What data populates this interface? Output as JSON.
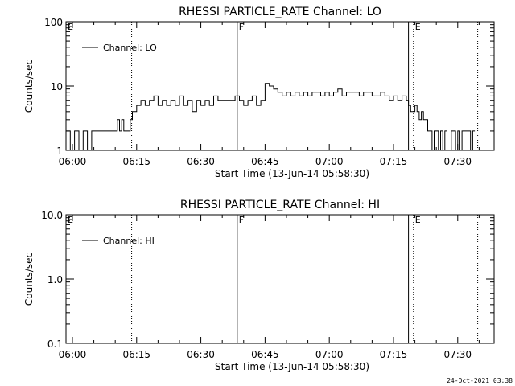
{
  "timestamp": "24-Oct-2021 03:38",
  "chart_data": [
    {
      "type": "line",
      "title": "RHESSI PARTICLE_RATE Channel: LO",
      "xlabel": "Start Time (13-Jun-14 05:58:30)",
      "ylabel": "Counts/sec",
      "yscale": "log",
      "ylim": [
        1,
        100
      ],
      "xlim": [
        "05:58:30",
        "07:38:30"
      ],
      "x_ticks": [
        "06:00",
        "06:15",
        "06:30",
        "06:45",
        "07:00",
        "07:15",
        "07:30"
      ],
      "y_ticks": [
        "1",
        "10",
        "100"
      ],
      "legend": {
        "position": "top-left",
        "entries": [
          "Channel: LO"
        ]
      },
      "markers": [
        {
          "label": "E",
          "time": "05:58:30",
          "style": "solid"
        },
        {
          "label": "",
          "time": "06:13:50",
          "style": "dotted"
        },
        {
          "label": "F",
          "time": "06:38:30",
          "style": "solid"
        },
        {
          "label": "",
          "time": "07:18:30",
          "style": "solid"
        },
        {
          "label": "E",
          "time": "07:19:40",
          "style": "dotted"
        },
        {
          "label": "",
          "time": "07:34:40",
          "style": "dotted"
        }
      ],
      "series": [
        {
          "name": "Channel: LO",
          "x": [
            "05:58:30",
            "05:59:30",
            "06:00:30",
            "06:01:30",
            "06:02:30",
            "06:03:30",
            "06:04:30",
            "06:06:00",
            "06:08:00",
            "06:10:00",
            "06:10:30",
            "06:11:00",
            "06:11:30",
            "06:12:00",
            "06:12:30",
            "06:13:00",
            "06:13:30",
            "06:14:00",
            "06:15:00",
            "06:16:00",
            "06:17:00",
            "06:18:00",
            "06:19:00",
            "06:20:00",
            "06:21:00",
            "06:22:00",
            "06:23:00",
            "06:24:00",
            "06:25:00",
            "06:26:00",
            "06:27:00",
            "06:28:00",
            "06:29:00",
            "06:30:00",
            "06:31:00",
            "06:32:00",
            "06:33:00",
            "06:34:00",
            "06:35:00",
            "06:36:00",
            "06:37:00",
            "06:38:00",
            "06:39:00",
            "06:40:00",
            "06:41:00",
            "06:42:00",
            "06:43:00",
            "06:44:00",
            "06:45:00",
            "06:46:00",
            "06:47:00",
            "06:48:00",
            "06:49:00",
            "06:50:00",
            "06:51:00",
            "06:52:00",
            "06:53:00",
            "06:54:00",
            "06:55:00",
            "06:56:00",
            "06:57:00",
            "06:58:00",
            "06:59:00",
            "07:00:00",
            "07:01:00",
            "07:02:00",
            "07:03:00",
            "07:04:00",
            "07:05:00",
            "07:06:00",
            "07:07:00",
            "07:08:00",
            "07:09:00",
            "07:10:00",
            "07:11:00",
            "07:12:00",
            "07:13:00",
            "07:14:00",
            "07:15:00",
            "07:16:00",
            "07:17:00",
            "07:18:00",
            "07:18:30",
            "07:19:00",
            "07:20:00",
            "07:20:30",
            "07:21:00",
            "07:21:30",
            "07:22:00",
            "07:22:30",
            "07:23:00",
            "07:23:30",
            "07:24:00",
            "07:24:30",
            "07:25:00",
            "07:25:30",
            "07:26:00",
            "07:26:30",
            "07:27:00",
            "07:27:30",
            "07:28:00",
            "07:28:30",
            "07:29:00",
            "07:29:30",
            "07:30:00",
            "07:30:30",
            "07:31:00",
            "07:31:30",
            "07:32:00",
            "07:32:30",
            "07:33:00",
            "07:33:30"
          ],
          "y": [
            2,
            1,
            2,
            1,
            2,
            1,
            2,
            2,
            2,
            2,
            3,
            2,
            3,
            2,
            2,
            2,
            3,
            4,
            5,
            6,
            5,
            6,
            7,
            5,
            6,
            5,
            6,
            5,
            7,
            5,
            6,
            4,
            6,
            5,
            6,
            5,
            7,
            6,
            6,
            6,
            6,
            7,
            6,
            5,
            6,
            7,
            5,
            6,
            11,
            10,
            9,
            8,
            7,
            8,
            7,
            8,
            7,
            8,
            7,
            8,
            8,
            7,
            8,
            7,
            8,
            9,
            7,
            8,
            8,
            8,
            7,
            8,
            8,
            7,
            7,
            8,
            7,
            6,
            7,
            6,
            7,
            6,
            5,
            4,
            5,
            4,
            3,
            4,
            3,
            3,
            2,
            2,
            1,
            2,
            2,
            1,
            2,
            1,
            2,
            1,
            1,
            2,
            2,
            1,
            2,
            1,
            2,
            2,
            2,
            2,
            1,
            2
          ]
        }
      ]
    },
    {
      "type": "line",
      "title": "RHESSI PARTICLE_RATE Channel: HI",
      "xlabel": "Start Time (13-Jun-14 05:58:30)",
      "ylabel": "Counts/sec",
      "yscale": "log",
      "ylim": [
        0.1,
        10.0
      ],
      "xlim": [
        "05:58:30",
        "07:38:30"
      ],
      "x_ticks": [
        "06:00",
        "06:15",
        "06:30",
        "06:45",
        "07:00",
        "07:15",
        "07:30"
      ],
      "y_ticks": [
        "0.1",
        "1.0",
        "10.0"
      ],
      "legend": {
        "position": "top-left",
        "entries": [
          "Channel: HI"
        ]
      },
      "markers": [
        {
          "label": "E",
          "time": "05:58:30",
          "style": "solid"
        },
        {
          "label": "",
          "time": "06:13:50",
          "style": "dotted"
        },
        {
          "label": "F",
          "time": "06:38:30",
          "style": "solid"
        },
        {
          "label": "",
          "time": "07:18:30",
          "style": "solid"
        },
        {
          "label": "E",
          "time": "07:19:40",
          "style": "dotted"
        },
        {
          "label": "",
          "time": "07:34:40",
          "style": "dotted"
        }
      ],
      "series": [
        {
          "name": "Channel: HI",
          "x": [],
          "y": []
        }
      ]
    }
  ]
}
